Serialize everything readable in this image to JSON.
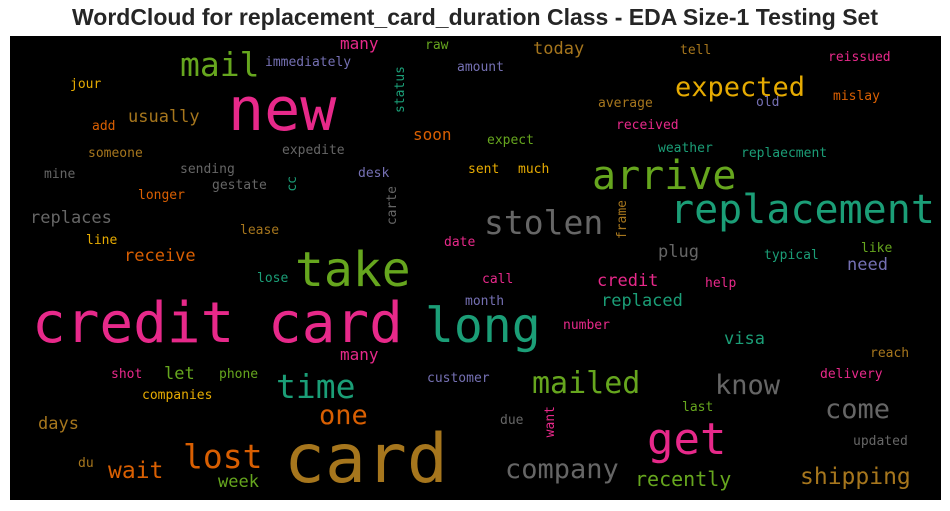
{
  "title": "WordCloud for replacement_card_duration Class - EDA Size-1 Testing Set",
  "colors": {
    "pink": "#e7298a",
    "green": "#1b9e77",
    "lime": "#66a61e",
    "gold": "#a6761d",
    "orange": "#d95f02",
    "purple": "#7570b3",
    "yellow": "#e6ab02",
    "gray": "#666666"
  },
  "words": [
    {
      "text": "new",
      "color": "pink"
    },
    {
      "text": "mail",
      "color": "lime"
    },
    {
      "text": "many",
      "color": "pink"
    },
    {
      "text": "immediately",
      "color": "purple"
    },
    {
      "text": "raw",
      "color": "lime"
    },
    {
      "text": "today",
      "color": "gold"
    },
    {
      "text": "tell",
      "color": "gold"
    },
    {
      "text": "reissued",
      "color": "pink"
    },
    {
      "text": "amount",
      "color": "purple"
    },
    {
      "text": "status",
      "color": "green"
    },
    {
      "text": "jour",
      "color": "yellow"
    },
    {
      "text": "expected",
      "color": "yellow"
    },
    {
      "text": "old",
      "color": "purple"
    },
    {
      "text": "mislay",
      "color": "orange"
    },
    {
      "text": "average",
      "color": "gold"
    },
    {
      "text": "usually",
      "color": "gold"
    },
    {
      "text": "add",
      "color": "orange"
    },
    {
      "text": "soon",
      "color": "orange"
    },
    {
      "text": "received",
      "color": "pink"
    },
    {
      "text": "expect",
      "color": "lime"
    },
    {
      "text": "someone",
      "color": "gold"
    },
    {
      "text": "expedite",
      "color": "gray"
    },
    {
      "text": "weather",
      "color": "green"
    },
    {
      "text": "replaecment",
      "color": "green"
    },
    {
      "text": "mine",
      "color": "gray"
    },
    {
      "text": "sending",
      "color": "gray"
    },
    {
      "text": "gestate",
      "color": "gray"
    },
    {
      "text": "cc",
      "color": "green"
    },
    {
      "text": "desk",
      "color": "purple"
    },
    {
      "text": "sent",
      "color": "yellow"
    },
    {
      "text": "much",
      "color": "yellow"
    },
    {
      "text": "arrive",
      "color": "lime"
    },
    {
      "text": "longer",
      "color": "orange"
    },
    {
      "text": "replacement",
      "color": "green"
    },
    {
      "text": "replaces",
      "color": "gray"
    },
    {
      "text": "stolen",
      "color": "gray"
    },
    {
      "text": "carte",
      "color": "gray"
    },
    {
      "text": "line",
      "color": "yellow"
    },
    {
      "text": "lease",
      "color": "gold"
    },
    {
      "text": "date",
      "color": "pink"
    },
    {
      "text": "frame",
      "color": "gold"
    },
    {
      "text": "plug",
      "color": "gray"
    },
    {
      "text": "typical",
      "color": "green"
    },
    {
      "text": "like",
      "color": "lime"
    },
    {
      "text": "receive",
      "color": "orange"
    },
    {
      "text": "take",
      "color": "lime"
    },
    {
      "text": "need",
      "color": "purple"
    },
    {
      "text": "lose",
      "color": "green"
    },
    {
      "text": "call",
      "color": "pink"
    },
    {
      "text": "credit",
      "color": "pink"
    },
    {
      "text": "help",
      "color": "pink"
    },
    {
      "text": "credit card",
      "color": "pink"
    },
    {
      "text": "long",
      "color": "green"
    },
    {
      "text": "month",
      "color": "purple"
    },
    {
      "text": "replaced",
      "color": "green"
    },
    {
      "text": "number",
      "color": "pink"
    },
    {
      "text": "visa",
      "color": "green"
    },
    {
      "text": "reach",
      "color": "gold"
    },
    {
      "text": "many",
      "color": "pink"
    },
    {
      "text": "shot",
      "color": "pink"
    },
    {
      "text": "let",
      "color": "lime"
    },
    {
      "text": "phone",
      "color": "lime"
    },
    {
      "text": "time",
      "color": "green"
    },
    {
      "text": "customer",
      "color": "purple"
    },
    {
      "text": "mailed",
      "color": "lime"
    },
    {
      "text": "know",
      "color": "gray"
    },
    {
      "text": "delivery",
      "color": "pink"
    },
    {
      "text": "companies",
      "color": "yellow"
    },
    {
      "text": "last",
      "color": "lime"
    },
    {
      "text": "one",
      "color": "orange"
    },
    {
      "text": "come",
      "color": "gray"
    },
    {
      "text": "days",
      "color": "gold"
    },
    {
      "text": "due",
      "color": "gray"
    },
    {
      "text": "want",
      "color": "pink"
    },
    {
      "text": "get",
      "color": "pink"
    },
    {
      "text": "updated",
      "color": "gray"
    },
    {
      "text": "lost",
      "color": "orange"
    },
    {
      "text": "card",
      "color": "gold"
    },
    {
      "text": "wait",
      "color": "orange"
    },
    {
      "text": "company",
      "color": "gray"
    },
    {
      "text": "du",
      "color": "gold"
    },
    {
      "text": "week",
      "color": "lime"
    },
    {
      "text": "recently",
      "color": "lime"
    },
    {
      "text": "shipping",
      "color": "gold"
    }
  ]
}
